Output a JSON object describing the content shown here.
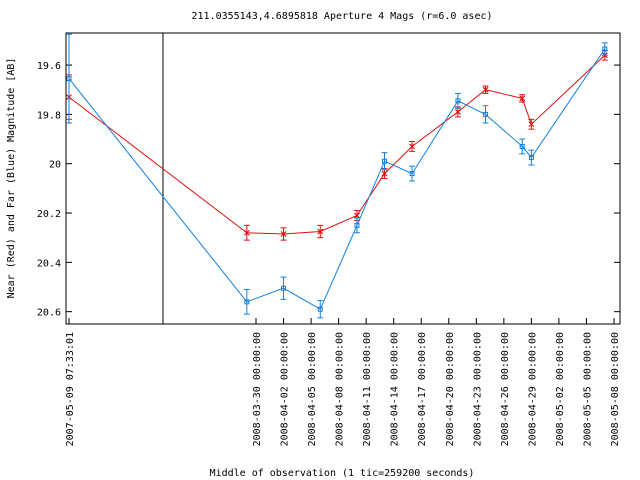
{
  "chart_data": {
    "type": "line",
    "title": "211.0355143,4.6895818   Aperture 4 Mags (r=6.0 asec)",
    "xlabel": "Middle of observation (1 tic=259200 seconds)",
    "ylabel": "Near (Red) and Far (Blue) Magnitude [AB]",
    "y_inverted": true,
    "ylim": [
      20.65,
      19.47
    ],
    "yticks": [
      "19.6",
      "19.8",
      "20",
      "20.2",
      "20.4",
      "20.6"
    ],
    "x_tick_labels": [
      "2007-05-09 07:33:01",
      "2008-03-30 00:00:00",
      "2008-04-02 00:00:00",
      "2008-04-05 00:00:00",
      "2008-04-08 00:00:00",
      "2008-04-11 00:00:00",
      "2008-04-14 00:00:00",
      "2008-04-17 00:00:00",
      "2008-04-20 00:00:00",
      "2008-04-23 00:00:00",
      "2008-04-26 00:00:00",
      "2008-04-29 00:00:00",
      "2008-05-02 00:00:00",
      "2008-05-05 00:00:00",
      "2008-05-08 00:00:00"
    ],
    "axis_break_after_first_tick": true,
    "series": [
      {
        "name": "Near (Red)",
        "color": "#e01010",
        "marker": "x",
        "points": [
          {
            "x": "2007-05-09",
            "y": 19.73,
            "err": 0.09
          },
          {
            "x": "2008-03-29",
            "y": 20.28,
            "err": 0.03
          },
          {
            "x": "2008-04-02",
            "y": 20.285,
            "err": 0.025
          },
          {
            "x": "2008-04-06",
            "y": 20.275,
            "err": 0.025
          },
          {
            "x": "2008-04-10",
            "y": 20.21,
            "err": 0.02
          },
          {
            "x": "2008-04-13",
            "y": 20.04,
            "err": 0.02
          },
          {
            "x": "2008-04-16",
            "y": 19.93,
            "err": 0.02
          },
          {
            "x": "2008-04-21",
            "y": 19.79,
            "err": 0.02
          },
          {
            "x": "2008-04-24",
            "y": 19.7,
            "err": 0.015
          },
          {
            "x": "2008-04-28",
            "y": 19.735,
            "err": 0.015
          },
          {
            "x": "2008-04-29",
            "y": 19.84,
            "err": 0.02
          },
          {
            "x": "2008-05-07",
            "y": 19.56,
            "err": 0.02
          }
        ]
      },
      {
        "name": "Far (Blue)",
        "color": "#1080e0",
        "marker": "square",
        "points": [
          {
            "x": "2007-05-09",
            "y": 19.655,
            "err": 0.18
          },
          {
            "x": "2008-03-29",
            "y": 20.56,
            "err": 0.05
          },
          {
            "x": "2008-04-02",
            "y": 20.505,
            "err": 0.045
          },
          {
            "x": "2008-04-06",
            "y": 20.59,
            "err": 0.035
          },
          {
            "x": "2008-04-10",
            "y": 20.25,
            "err": 0.03
          },
          {
            "x": "2008-04-13",
            "y": 19.99,
            "err": 0.035
          },
          {
            "x": "2008-04-16",
            "y": 20.04,
            "err": 0.03
          },
          {
            "x": "2008-04-21",
            "y": 19.745,
            "err": 0.03
          },
          {
            "x": "2008-04-24",
            "y": 19.8,
            "err": 0.035
          },
          {
            "x": "2008-04-28",
            "y": 19.93,
            "err": 0.03
          },
          {
            "x": "2008-04-29",
            "y": 19.975,
            "err": 0.03
          },
          {
            "x": "2008-05-07",
            "y": 19.535,
            "err": 0.025
          }
        ]
      }
    ]
  }
}
